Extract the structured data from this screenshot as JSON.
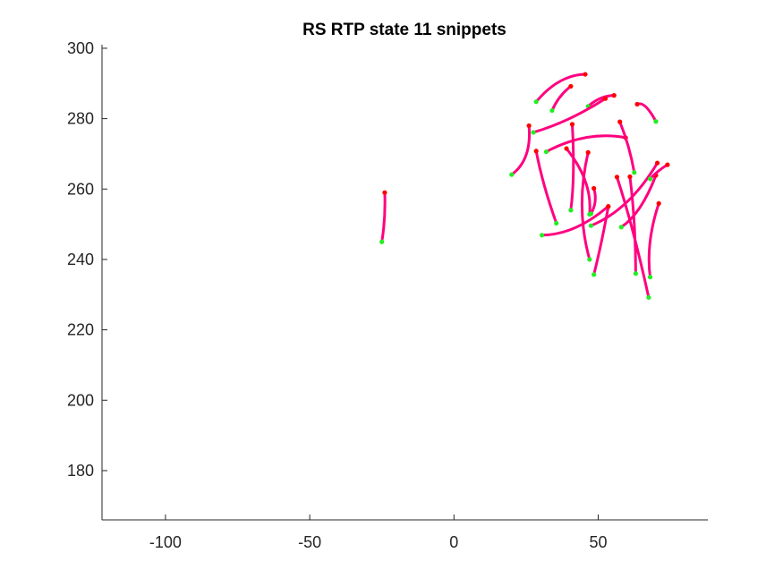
{
  "chart_data": {
    "type": "line",
    "title": "RS  RTP state 11 snippets",
    "xlabel": "",
    "ylabel": "",
    "xlim": [
      -122,
      88
    ],
    "ylim": [
      166,
      301
    ],
    "x_ticks": [
      -100,
      -50,
      0,
      50
    ],
    "y_ticks": [
      180,
      200,
      220,
      240,
      260,
      280,
      300
    ],
    "x_tick_labels": [
      "-100",
      "-50",
      "0",
      "50"
    ],
    "y_tick_labels": [
      "180",
      "200",
      "220",
      "240",
      "260",
      "280",
      "300"
    ],
    "grid": false,
    "legend": "none",
    "colors": {
      "path": "#ff0080",
      "start": "#22ee22",
      "end": "#ff0000",
      "axis": "#262626"
    },
    "series": [
      {
        "x": [
          -25,
          -24.5,
          -24
        ],
        "y": [
          245,
          252,
          259
        ],
        "bend": 0.05
      },
      {
        "x": [
          28.5,
          37,
          45.5
        ],
        "y": [
          284.8,
          290,
          292.6
        ],
        "bend": -0.08
      },
      {
        "x": [
          34,
          37,
          40.5
        ],
        "y": [
          282.3,
          286,
          289.2
        ],
        "bend": -0.06
      },
      {
        "x": [
          46.5,
          51,
          55.5
        ],
        "y": [
          283.5,
          285.5,
          286.6
        ],
        "bend": -0.08
      },
      {
        "x": [
          27.5,
          40,
          52.5
        ],
        "y": [
          276.1,
          280,
          285.7
        ],
        "bend": 0.0
      },
      {
        "x": [
          70,
          66,
          63.5
        ],
        "y": [
          279.2,
          283,
          284.1
        ],
        "bend": 0.15
      },
      {
        "x": [
          20,
          24,
          26
        ],
        "y": [
          264.1,
          270,
          278.0
        ],
        "bend": 0.12
      },
      {
        "x": [
          32,
          46,
          59.5
        ],
        "y": [
          270.6,
          273.5,
          274.6
        ],
        "bend": -0.1
      },
      {
        "x": [
          62.5,
          60,
          57.5
        ],
        "y": [
          264.7,
          272,
          279.1
        ],
        "bend": 0.05
      },
      {
        "x": [
          40.5,
          40.2,
          41
        ],
        "y": [
          254.0,
          265,
          278.4
        ],
        "bend": 0.08
      },
      {
        "x": [
          47,
          45.5,
          46.5
        ],
        "y": [
          240.0,
          255,
          270.4
        ],
        "bend": -0.06
      },
      {
        "x": [
          35.5,
          32,
          28.5
        ],
        "y": [
          250.3,
          261,
          270.8
        ],
        "bend": -0.05
      },
      {
        "x": [
          47,
          45,
          39
        ],
        "y": [
          252.8,
          262,
          271.5
        ],
        "bend": 0.05
      },
      {
        "x": [
          47.5,
          48.5,
          48.5
        ],
        "y": [
          253.0,
          256.5,
          260.2
        ],
        "bend": 0.1
      },
      {
        "x": [
          30.5,
          42,
          53.5
        ],
        "y": [
          246.9,
          249,
          255.1
        ],
        "bend": 0.0
      },
      {
        "x": [
          48.5,
          50.5,
          53.5
        ],
        "y": [
          235.7,
          245,
          255.0
        ],
        "bend": 0.05
      },
      {
        "x": [
          47.5,
          59,
          70.5
        ],
        "y": [
          249.6,
          257,
          267.4
        ],
        "bend": 0.08
      },
      {
        "x": [
          58,
          64,
          70
        ],
        "y": [
          249.2,
          255,
          263.9
        ],
        "bend": 0.05
      },
      {
        "x": [
          63,
          62,
          61
        ],
        "y": [
          236.0,
          250,
          263.5
        ],
        "bend": 0.03
      },
      {
        "x": [
          67.5,
          62,
          56.5
        ],
        "y": [
          229.2,
          248,
          263.4
        ],
        "bend": 0.0
      },
      {
        "x": [
          68,
          69,
          71
        ],
        "y": [
          235.0,
          245,
          255.9
        ],
        "bend": -0.08
      },
      {
        "x": [
          68,
          71,
          74
        ],
        "y": [
          262.9,
          265,
          266.9
        ],
        "bend": -0.05
      }
    ]
  }
}
